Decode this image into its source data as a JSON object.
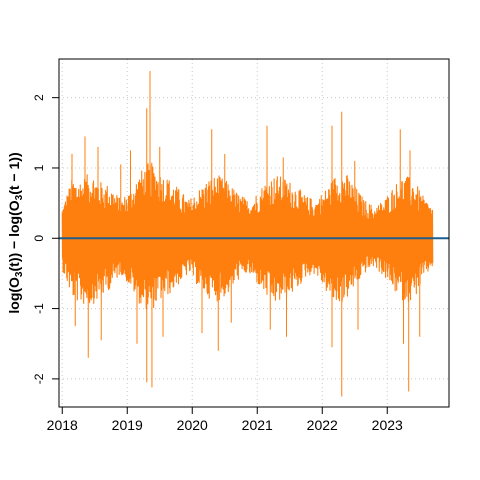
{
  "chart_data": {
    "type": "line",
    "title": "",
    "xlabel": "",
    "ylabel_parts": [
      "log(O",
      "3",
      "(t)) − log(O",
      "3",
      "(t − 1))"
    ],
    "xlim": [
      2017.95,
      2023.95
    ],
    "ylim": [
      -2.4,
      2.55
    ],
    "x_ticks": [
      2018,
      2019,
      2020,
      2021,
      2022,
      2023
    ],
    "x_tick_labels": [
      "2018",
      "2019",
      "2020",
      "2021",
      "2022",
      "2023"
    ],
    "y_ticks": [
      -2,
      -1,
      0,
      1,
      2
    ],
    "y_tick_labels": [
      "-2",
      "-1",
      "0",
      "1",
      "2"
    ],
    "grid": true,
    "series": [
      {
        "color": "#ff7f0e",
        "x_start": 2018.0,
        "x_end": 2023.7,
        "envelope_x": [
          2018.0,
          2018.15,
          2018.3,
          2018.45,
          2018.6,
          2018.75,
          2018.9,
          2019.05,
          2019.2,
          2019.35,
          2019.5,
          2019.65,
          2019.8,
          2019.95,
          2020.1,
          2020.25,
          2020.4,
          2020.55,
          2020.7,
          2020.85,
          2021.0,
          2021.15,
          2021.3,
          2021.45,
          2021.6,
          2021.75,
          2021.9,
          2022.05,
          2022.2,
          2022.35,
          2022.5,
          2022.65,
          2022.8,
          2022.95,
          2023.1,
          2023.25,
          2023.4,
          2023.55,
          2023.7
        ],
        "envelope_upper": [
          0.45,
          0.85,
          0.85,
          0.95,
          0.8,
          0.75,
          0.55,
          0.7,
          0.95,
          1.1,
          0.95,
          0.85,
          0.7,
          0.55,
          0.7,
          0.85,
          0.9,
          0.8,
          0.65,
          0.55,
          0.65,
          0.85,
          0.9,
          0.85,
          0.75,
          0.6,
          0.55,
          0.7,
          0.9,
          0.95,
          0.75,
          0.55,
          0.45,
          0.55,
          0.75,
          0.9,
          0.85,
          0.6,
          0.45
        ],
        "envelope_lower": [
          -0.45,
          -0.85,
          -0.95,
          -0.95,
          -0.85,
          -0.7,
          -0.5,
          -0.7,
          -0.95,
          -1.05,
          -0.9,
          -0.8,
          -0.65,
          -0.5,
          -0.7,
          -0.85,
          -0.9,
          -0.8,
          -0.6,
          -0.5,
          -0.65,
          -0.85,
          -0.95,
          -0.85,
          -0.75,
          -0.55,
          -0.5,
          -0.75,
          -0.95,
          -0.9,
          -0.7,
          -0.5,
          -0.4,
          -0.55,
          -0.75,
          -0.9,
          -0.9,
          -0.6,
          -0.4
        ],
        "spikes": [
          {
            "x": 2018.15,
            "y": 1.2
          },
          {
            "x": 2018.35,
            "y": 1.45
          },
          {
            "x": 2018.55,
            "y": 1.3
          },
          {
            "x": 2018.9,
            "y": 1.05
          },
          {
            "x": 2019.05,
            "y": 1.25
          },
          {
            "x": 2019.3,
            "y": 1.85
          },
          {
            "x": 2019.35,
            "y": 2.38
          },
          {
            "x": 2019.5,
            "y": 1.3
          },
          {
            "x": 2020.3,
            "y": 1.55
          },
          {
            "x": 2020.5,
            "y": 1.2
          },
          {
            "x": 2021.15,
            "y": 1.6
          },
          {
            "x": 2021.4,
            "y": 1.15
          },
          {
            "x": 2022.15,
            "y": 1.6
          },
          {
            "x": 2022.3,
            "y": 1.8
          },
          {
            "x": 2022.5,
            "y": 1.1
          },
          {
            "x": 2023.2,
            "y": 1.55
          },
          {
            "x": 2023.35,
            "y": 1.25
          },
          {
            "x": 2018.2,
            "y": -1.25
          },
          {
            "x": 2018.4,
            "y": -1.7
          },
          {
            "x": 2018.6,
            "y": -1.45
          },
          {
            "x": 2019.15,
            "y": -1.5
          },
          {
            "x": 2019.3,
            "y": -2.05
          },
          {
            "x": 2019.38,
            "y": -2.12
          },
          {
            "x": 2019.55,
            "y": -1.4
          },
          {
            "x": 2020.15,
            "y": -1.35
          },
          {
            "x": 2020.4,
            "y": -1.6
          },
          {
            "x": 2020.6,
            "y": -1.2
          },
          {
            "x": 2021.2,
            "y": -1.3
          },
          {
            "x": 2021.45,
            "y": -1.4
          },
          {
            "x": 2022.15,
            "y": -1.55
          },
          {
            "x": 2022.3,
            "y": -2.25
          },
          {
            "x": 2022.55,
            "y": -1.3
          },
          {
            "x": 2023.25,
            "y": -1.5
          },
          {
            "x": 2023.33,
            "y": -2.18
          },
          {
            "x": 2023.5,
            "y": -1.4
          }
        ]
      },
      {
        "color": "#1f5f8b",
        "kind": "horizontal_line",
        "y": 0
      }
    ]
  }
}
